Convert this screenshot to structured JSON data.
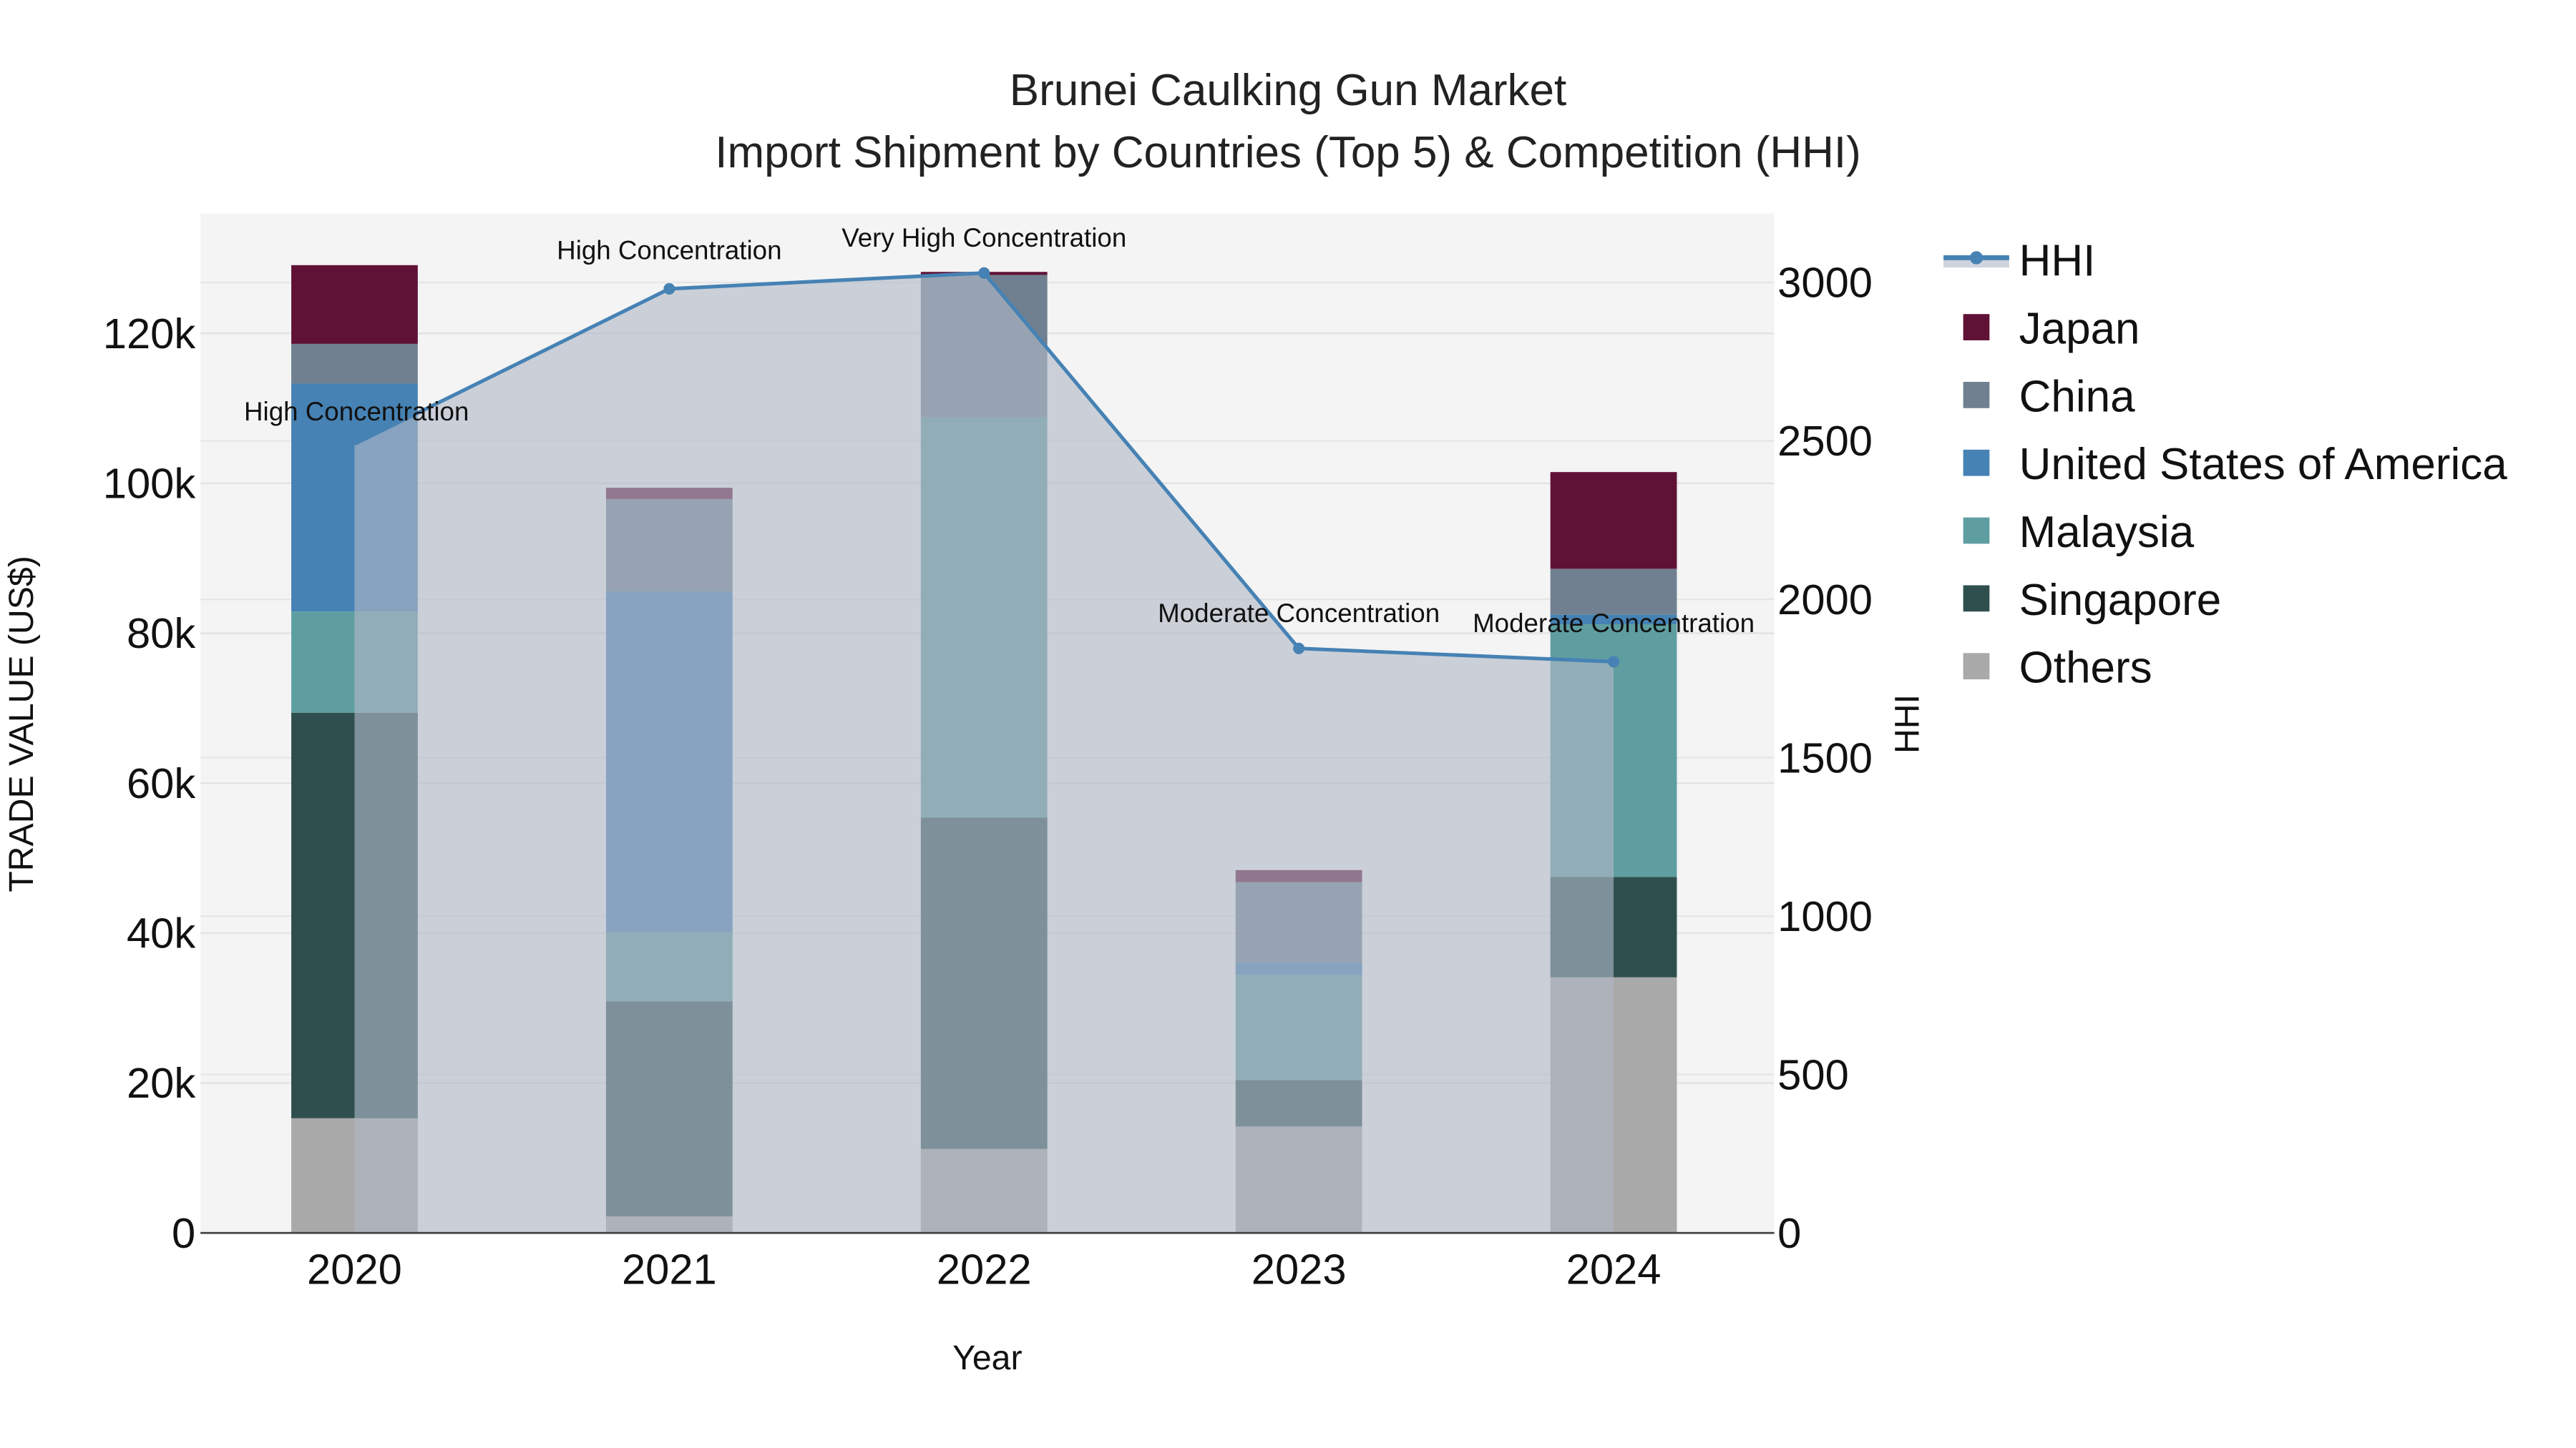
{
  "chart_data": {
    "type": "bar",
    "subtype": "stacked bar with line overlay (secondary axis)",
    "title": "Brunei Caulking Gun Market",
    "subtitle": "Import Shipment by Countries (Top 5) & Competition (HHI)",
    "xlabel": "Year",
    "ylabel": "TRADE VALUE (US$)",
    "y2label": "HHI",
    "categories": [
      "2020",
      "2021",
      "2022",
      "2023",
      "2024"
    ],
    "ylim": [
      0,
      136000
    ],
    "y_ticks": [
      0,
      20000,
      40000,
      60000,
      80000,
      100000,
      120000
    ],
    "y_tick_labels": [
      "0",
      "20k",
      "40k",
      "60k",
      "80k",
      "100k",
      "120k"
    ],
    "y2lim": [
      0,
      3218
    ],
    "y2_ticks": [
      0,
      500,
      1000,
      1500,
      2000,
      2500,
      3000
    ],
    "y2_tick_labels": [
      "0",
      "500",
      "1000",
      "1500",
      "2000",
      "2500",
      "3000"
    ],
    "grid": true,
    "legend_position": "right",
    "series": [
      {
        "name": "Others",
        "color": "#a9a9a9",
        "values": [
          15300,
          2200,
          11200,
          14200,
          34100
        ]
      },
      {
        "name": "Singapore",
        "color": "#2f4f4f",
        "values": [
          54100,
          28700,
          44200,
          6200,
          13400
        ]
      },
      {
        "name": "Malaysia",
        "color": "#5f9ea0",
        "values": [
          13500,
          9200,
          53400,
          14000,
          33700
        ]
      },
      {
        "name": "United States of America",
        "color": "#4682b4",
        "values": [
          30400,
          45500,
          0,
          1700,
          1300
        ]
      },
      {
        "name": "China",
        "color": "#708090",
        "values": [
          5300,
          12300,
          19000,
          10700,
          6100
        ]
      },
      {
        "name": "Japan",
        "color": "#601236",
        "values": [
          10500,
          1500,
          400,
          1600,
          12900
        ]
      }
    ],
    "line_series": {
      "name": "HHI",
      "axis": "right",
      "color": "#4682b4",
      "fill_color": "rgba(176,184,198,0.6)",
      "values": [
        2490,
        2980,
        3030,
        1845,
        1803
      ],
      "annotations": [
        "High Concentration",
        "High Concentration",
        "Very High Concentration",
        "Moderate Concentration",
        "Moderate Concentration"
      ]
    }
  },
  "legend": {
    "items": [
      {
        "label": "HHI",
        "color": "#4682b4",
        "kind": "line"
      },
      {
        "label": "Japan",
        "color": "#601236",
        "kind": "box"
      },
      {
        "label": "China",
        "color": "#708090",
        "kind": "box"
      },
      {
        "label": "United States of America",
        "color": "#4682b4",
        "kind": "box"
      },
      {
        "label": "Malaysia",
        "color": "#5f9ea0",
        "kind": "box"
      },
      {
        "label": "Singapore",
        "color": "#2f4f4f",
        "kind": "box"
      },
      {
        "label": "Others",
        "color": "#a9a9a9",
        "kind": "box"
      }
    ]
  },
  "colors": {
    "plot_bg": "#f4f4f4",
    "grid": "#e2e2e2",
    "axis_line": "#444444"
  }
}
